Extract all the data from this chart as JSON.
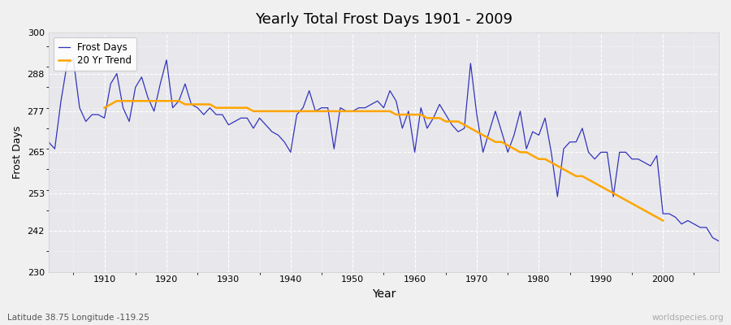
{
  "title": "Yearly Total Frost Days 1901 - 2009",
  "xlabel": "Year",
  "ylabel": "Frost Days",
  "subtitle": "Latitude 38.75 Longitude -119.25",
  "watermark": "worldspecies.org",
  "legend_labels": [
    "Frost Days",
    "20 Yr Trend"
  ],
  "line_color": "#3333bb",
  "trend_color": "#ffa500",
  "bg_color": "#f0f0f0",
  "plot_bg_color": "#e8e8ec",
  "ylim": [
    230,
    300
  ],
  "yticks": [
    230,
    242,
    253,
    265,
    277,
    288,
    300
  ],
  "xlim": [
    1901,
    2009
  ],
  "xticks": [
    1910,
    1920,
    1930,
    1940,
    1950,
    1960,
    1970,
    1980,
    1990,
    2000
  ],
  "years": [
    1901,
    1902,
    1903,
    1904,
    1905,
    1906,
    1907,
    1908,
    1909,
    1910,
    1911,
    1912,
    1913,
    1914,
    1915,
    1916,
    1917,
    1918,
    1919,
    1920,
    1921,
    1922,
    1923,
    1924,
    1925,
    1926,
    1927,
    1928,
    1929,
    1930,
    1931,
    1932,
    1933,
    1934,
    1935,
    1936,
    1937,
    1938,
    1939,
    1940,
    1941,
    1942,
    1943,
    1944,
    1945,
    1946,
    1947,
    1948,
    1949,
    1950,
    1951,
    1952,
    1953,
    1954,
    1955,
    1956,
    1957,
    1958,
    1959,
    1960,
    1961,
    1962,
    1963,
    1964,
    1965,
    1966,
    1967,
    1968,
    1969,
    1970,
    1971,
    1972,
    1973,
    1974,
    1975,
    1976,
    1977,
    1978,
    1979,
    1980,
    1981,
    1982,
    1983,
    1984,
    1985,
    1986,
    1987,
    1988,
    1989,
    1990,
    1991,
    1992,
    1993,
    1994,
    1995,
    1996,
    1997,
    1998,
    1999,
    2000,
    2001,
    2002,
    2003,
    2004,
    2005,
    2006,
    2007,
    2008,
    2009
  ],
  "frost_days": [
    268,
    266,
    280,
    291,
    292,
    278,
    274,
    276,
    276,
    275,
    285,
    288,
    278,
    274,
    284,
    287,
    281,
    277,
    285,
    292,
    278,
    280,
    285,
    279,
    278,
    276,
    278,
    276,
    276,
    273,
    274,
    275,
    275,
    272,
    275,
    273,
    271,
    270,
    268,
    265,
    276,
    278,
    283,
    277,
    278,
    278,
    266,
    278,
    277,
    277,
    278,
    278,
    279,
    280,
    278,
    283,
    280,
    272,
    277,
    265,
    278,
    272,
    275,
    279,
    276,
    273,
    271,
    272,
    291,
    276,
    265,
    271,
    277,
    271,
    265,
    270,
    277,
    266,
    271,
    270,
    275,
    265,
    252,
    266,
    268,
    268,
    272,
    265,
    263,
    265,
    265,
    252,
    265,
    265,
    263,
    263,
    262,
    261,
    264,
    247,
    247,
    246,
    244,
    245,
    244,
    243,
    243,
    240,
    239
  ],
  "trend": [
    null,
    null,
    null,
    null,
    null,
    null,
    null,
    null,
    null,
    278,
    279,
    280,
    280,
    280,
    280,
    280,
    280,
    280,
    280,
    280,
    280,
    280,
    279,
    279,
    279,
    279,
    279,
    278,
    278,
    278,
    278,
    278,
    278,
    277,
    277,
    277,
    277,
    277,
    277,
    277,
    277,
    277,
    277,
    277,
    277,
    277,
    277,
    277,
    277,
    277,
    277,
    277,
    277,
    277,
    277,
    277,
    276,
    276,
    276,
    276,
    276,
    275,
    275,
    275,
    274,
    274,
    274,
    273,
    272,
    271,
    270,
    269,
    268,
    268,
    267,
    266,
    265,
    265,
    264,
    263,
    263,
    262,
    261,
    260,
    259,
    258,
    258,
    257,
    256,
    255,
    254,
    253,
    252,
    251,
    250,
    249,
    248,
    247,
    246,
    245,
    null,
    null,
    null,
    null,
    null,
    null,
    null,
    null,
    null,
    null
  ]
}
